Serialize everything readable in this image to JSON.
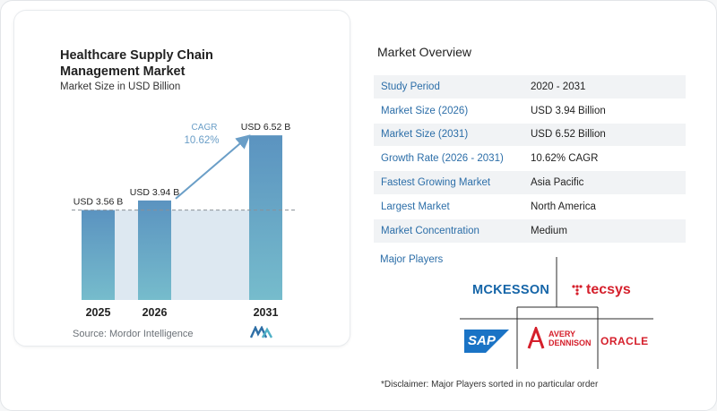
{
  "chart_data": {
    "type": "bar",
    "title": "Healthcare Supply Chain Management Market",
    "subtitle": "Market Size in USD Billion",
    "categories": [
      "2025",
      "2026",
      "2031"
    ],
    "values": [
      3.56,
      3.94,
      6.52
    ],
    "value_labels": [
      "USD 3.56 B",
      "USD 3.94 B",
      "USD 6.52 B"
    ],
    "cagr_label": "CAGR",
    "cagr_value": "10.62%",
    "reference_line": 3.56,
    "colors": {
      "bar_top": "#5b93c0",
      "bar_bottom": "#76bccc",
      "shade": "#dde8f1",
      "arrow": "#6a9ec7",
      "cagr_text": "#6a9ec7"
    }
  },
  "source": "Source:  Mordor Intelligence",
  "overview": {
    "title": "Market Overview",
    "rows": [
      {
        "label": "Study Period",
        "value": "2020 - 2031"
      },
      {
        "label": "Market Size (2026)",
        "value": "USD 3.94 Billion"
      },
      {
        "label": "Market Size (2031)",
        "value": "USD 6.52 Billion"
      },
      {
        "label": "Growth Rate (2026 - 2031)",
        "value": "10.62% CAGR"
      },
      {
        "label": "Fastest Growing Market",
        "value": "Asia Pacific"
      },
      {
        "label": "Largest Market",
        "value": "North America"
      },
      {
        "label": "Market Concentration",
        "value": "Medium"
      }
    ]
  },
  "players": {
    "title": "Major Players",
    "logos": {
      "mckesson": "MCKESSON",
      "tecsys": "tecsys",
      "sap": "SAP",
      "avery": [
        "AVERY",
        "DENNISON"
      ],
      "oracle": "ORACLE"
    },
    "colors": {
      "mckesson": "#1565a8",
      "tecsys": "#d51f2b",
      "sap": "#1a73c5",
      "avery": "#d51f2b",
      "oracle": "#d51f2b"
    }
  },
  "disclaimer": "*Disclaimer: Major Players sorted in no particular order"
}
